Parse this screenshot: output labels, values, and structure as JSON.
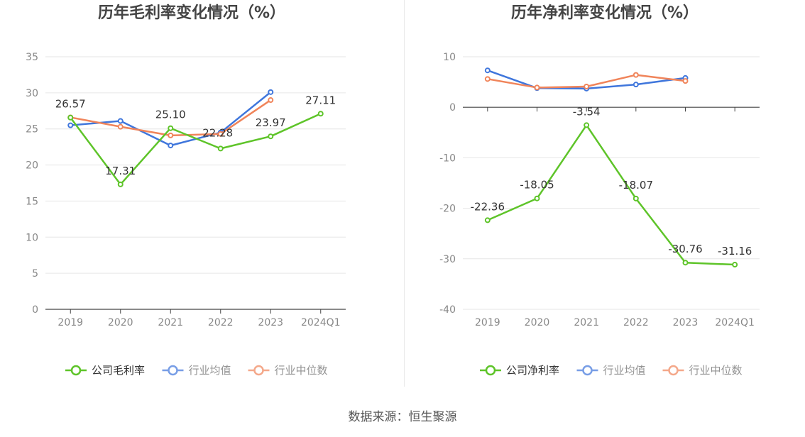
{
  "colors": {
    "company": "#5ec429",
    "industry_avg": "#3f76dc",
    "industry_median": "#f0845a",
    "grid": "#e6e6e6",
    "axis": "#444444",
    "tick_text": "#888888"
  },
  "source_text": "数据来源：恒生聚源",
  "chart_data": [
    {
      "type": "line",
      "title": "历年毛利率变化情况（%）",
      "categories": [
        "2019",
        "2020",
        "2021",
        "2022",
        "2023",
        "2024Q1"
      ],
      "ylim": [
        0,
        35
      ],
      "yticks": [
        0,
        5,
        10,
        15,
        20,
        25,
        30,
        35
      ],
      "grid": true,
      "legend_position": "bottom",
      "series": [
        {
          "name": "公司毛利率",
          "color_key": "company",
          "values": [
            26.57,
            17.31,
            25.1,
            22.28,
            23.97,
            27.11
          ],
          "labels": [
            "26.57",
            "17.31",
            "25.10",
            "22.28",
            "23.97",
            "27.11"
          ]
        },
        {
          "name": "行业均值",
          "color_key": "industry_avg",
          "values": [
            25.5,
            26.1,
            22.7,
            24.5,
            30.1,
            null
          ]
        },
        {
          "name": "行业中位数",
          "color_key": "industry_median",
          "values": [
            26.6,
            25.3,
            24.1,
            24.3,
            29.0,
            null
          ]
        }
      ]
    },
    {
      "type": "line",
      "title": "历年净利率变化情况（%）",
      "categories": [
        "2019",
        "2020",
        "2021",
        "2022",
        "2023",
        "2024Q1"
      ],
      "ylim": [
        -40,
        10
      ],
      "yticks": [
        -40,
        -30,
        -20,
        -10,
        0,
        10
      ],
      "grid": true,
      "legend_position": "bottom",
      "series": [
        {
          "name": "公司净利率",
          "color_key": "company",
          "values": [
            -22.36,
            -18.05,
            -3.54,
            -18.07,
            -30.76,
            -31.16
          ],
          "labels": [
            "-22.36",
            "-18.05",
            "-3.54",
            "-18.07",
            "-30.76",
            "-31.16"
          ]
        },
        {
          "name": "行业均值",
          "color_key": "industry_avg",
          "values": [
            7.3,
            3.8,
            3.7,
            4.5,
            5.8,
            null
          ]
        },
        {
          "name": "行业中位数",
          "color_key": "industry_median",
          "values": [
            5.6,
            3.9,
            4.1,
            6.4,
            5.2,
            null
          ]
        }
      ]
    }
  ]
}
